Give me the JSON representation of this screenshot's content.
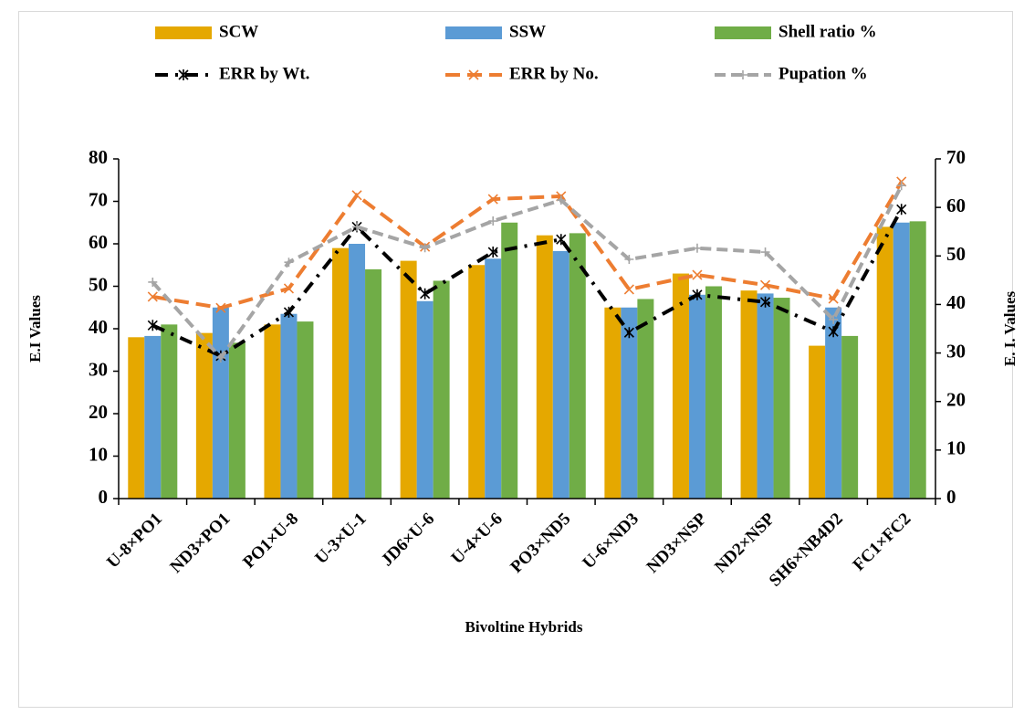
{
  "chart_data": {
    "type": "bar",
    "x_label": "Bivoltine Hybrids",
    "y_label": "E.I Values",
    "y2_label": "E. I. Values",
    "categories": [
      "U-8×PO1",
      "ND3×PO1",
      "PO1×U-8",
      "U-3×U-1",
      "JD6×U-6",
      "U-4×U-6",
      "PO3×ND5",
      "U-6×ND3",
      "ND3×NSP",
      "ND2×NSP",
      "SH6×NB4D2",
      "FC1×FC2"
    ],
    "ylim": [
      0,
      80
    ],
    "yticks": [
      0,
      10,
      20,
      30,
      40,
      50,
      60,
      70,
      80
    ],
    "y2lim": [
      0,
      70
    ],
    "y2ticks": [
      0,
      10,
      20,
      30,
      40,
      50,
      60,
      70
    ],
    "grid": false,
    "legend": "top",
    "series": [
      {
        "name": "SCW",
        "type": "bar",
        "color": "#e5a800",
        "values": [
          38,
          39,
          41,
          59,
          56,
          55,
          62,
          45,
          53,
          49,
          36,
          64
        ]
      },
      {
        "name": "SSW",
        "type": "bar",
        "color": "#5b9bd5",
        "values": [
          38.3,
          45,
          43.5,
          60,
          46.5,
          56.5,
          58.3,
          45,
          48,
          48.3,
          45,
          65
        ]
      },
      {
        "name": "Shell ratio %",
        "type": "bar",
        "color": "#70ad47",
        "values": [
          41,
          36.7,
          41.7,
          54,
          51.3,
          65,
          62.5,
          47,
          50,
          47.3,
          38.3,
          65.3
        ]
      },
      {
        "name": "ERR by Wt.",
        "type": "line",
        "axis": "y2",
        "color": "#000000",
        "dash": "14 8 3 8",
        "marker": "asterisk",
        "values": [
          35.7,
          29.4,
          38.4,
          56,
          42.2,
          50.8,
          53.4,
          34.2,
          42,
          40.5,
          34.4,
          59.6
        ]
      },
      {
        "name": "ERR by No.",
        "type": "line",
        "axis": "y2",
        "color": "#ed7d31",
        "dash": "16 8",
        "marker": "x",
        "values": [
          41.6,
          39.3,
          43.3,
          62.5,
          51.9,
          61.7,
          62.3,
          43.1,
          46.1,
          44,
          41.2,
          65.3
        ]
      },
      {
        "name": "Pupation %",
        "type": "line",
        "axis": "y2",
        "color": "#a5a5a5",
        "dash": "12 6",
        "marker": "plus",
        "values": [
          44.6,
          29,
          48.7,
          56,
          51.7,
          57.2,
          61.5,
          49.3,
          51.6,
          50.8,
          36.9,
          64.5
        ]
      }
    ]
  }
}
